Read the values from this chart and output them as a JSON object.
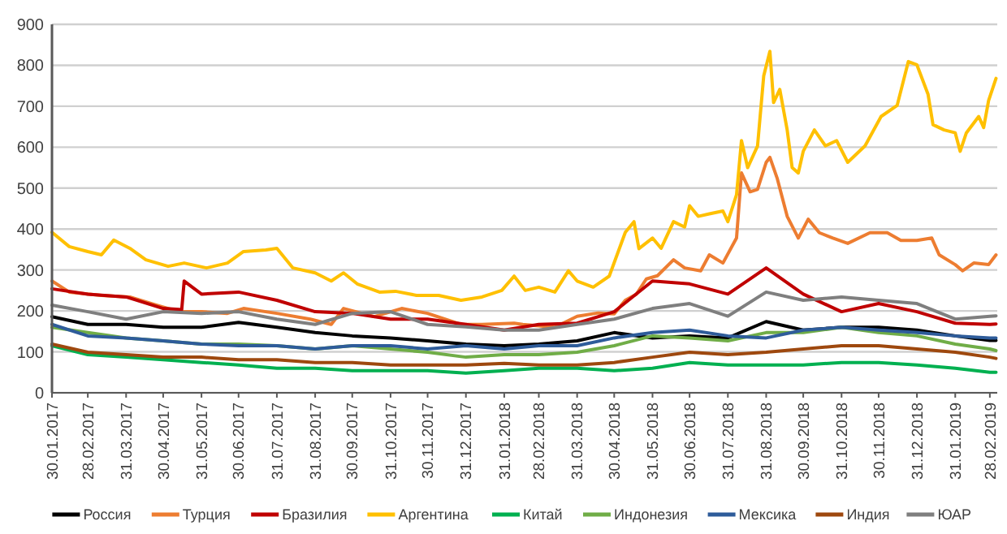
{
  "chart_data": {
    "type": "line",
    "legend": "bottom",
    "grid": "y",
    "line_style": "solid",
    "marker": "none",
    "xlim": [
      "2017-01-30",
      "2019-03-06"
    ],
    "xticks": [
      {
        "value": "2017-01-30",
        "label": "30.01.2017"
      },
      {
        "value": "2017-02-28",
        "label": "28.02.2017"
      },
      {
        "value": "2017-03-31",
        "label": "31.03.2017"
      },
      {
        "value": "2017-04-30",
        "label": "30.04.2017"
      },
      {
        "value": "2017-05-31",
        "label": "31.05.2017"
      },
      {
        "value": "2017-06-30",
        "label": "30.06.2017"
      },
      {
        "value": "2017-07-31",
        "label": "31.07.2017"
      },
      {
        "value": "2017-08-31",
        "label": "31.08.2017"
      },
      {
        "value": "2017-09-30",
        "label": "30.09.2017"
      },
      {
        "value": "2017-10-31",
        "label": "31.10.2017"
      },
      {
        "value": "2017-11-30",
        "label": "30.11.2017"
      },
      {
        "value": "2017-12-31",
        "label": "31.12.2017"
      },
      {
        "value": "2018-01-31",
        "label": "31.01.2018"
      },
      {
        "value": "2018-02-28",
        "label": "28.02.2018"
      },
      {
        "value": "2018-03-31",
        "label": "31.03.2018"
      },
      {
        "value": "2018-04-30",
        "label": "30.04.2018"
      },
      {
        "value": "2018-05-31",
        "label": "31.05.2018"
      },
      {
        "value": "2018-06-30",
        "label": "30.06.2018"
      },
      {
        "value": "2018-07-31",
        "label": "31.07.2018"
      },
      {
        "value": "2018-08-31",
        "label": "31.08.2018"
      },
      {
        "value": "2018-09-30",
        "label": "30.09.2018"
      },
      {
        "value": "2018-10-31",
        "label": "31.10.2018"
      },
      {
        "value": "2018-11-30",
        "label": "30.11.2018"
      },
      {
        "value": "2018-12-31",
        "label": "31.12.2018"
      },
      {
        "value": "2019-01-31",
        "label": "31.01.2019"
      },
      {
        "value": "2019-02-28",
        "label": "28.02.2019"
      }
    ],
    "ylim": [
      0,
      900
    ],
    "yticks": [
      0,
      100,
      200,
      300,
      400,
      500,
      600,
      700,
      800,
      900
    ],
    "x": [
      "2017-01-30",
      "2017-02-28",
      "2017-03-31",
      "2017-04-30",
      "2017-05-31",
      "2017-06-30",
      "2017-07-31",
      "2017-08-31",
      "2017-09-30",
      "2017-10-31",
      "2017-11-30",
      "2017-12-31",
      "2018-01-31",
      "2018-02-28",
      "2018-03-31",
      "2018-04-30",
      "2018-05-31",
      "2018-06-30",
      "2018-07-31",
      "2018-08-31",
      "2018-09-30",
      "2018-10-31",
      "2018-11-30",
      "2018-12-31",
      "2019-01-31",
      "2019-02-28",
      "2019-03-05"
    ],
    "series": [
      {
        "name": "Россия",
        "color": "#000000",
        "values": [
          186,
          167,
          167,
          160,
          160,
          172,
          160,
          147,
          139,
          134,
          127,
          119,
          115,
          119,
          127,
          147,
          134,
          139,
          134,
          174,
          153,
          160,
          160,
          153,
          139,
          128,
          128
        ]
      },
      {
        "name": "Турция",
        "color": "#ed7d31",
        "x": [
          "2017-01-30",
          "2017-02-13",
          "2017-03-11",
          "2017-04-03",
          "2017-04-25",
          "2017-05-13",
          "2017-05-31",
          "2017-06-21",
          "2017-07-04",
          "2017-07-31",
          "2017-08-27",
          "2017-09-13",
          "2017-09-23",
          "2017-10-18",
          "2017-11-09",
          "2017-11-30",
          "2017-12-27",
          "2018-01-13",
          "2018-02-08",
          "2018-02-15",
          "2018-03-13",
          "2018-03-31",
          "2018-04-17",
          "2018-04-30",
          "2018-05-09",
          "2018-05-18",
          "2018-05-26",
          "2018-06-04",
          "2018-06-17",
          "2018-06-26",
          "2018-07-09",
          "2018-07-16",
          "2018-07-27",
          "2018-08-07",
          "2018-08-11",
          "2018-08-18",
          "2018-08-24",
          "2018-08-31",
          "2018-09-03",
          "2018-09-09",
          "2018-09-17",
          "2018-09-26",
          "2018-10-04",
          "2018-10-13",
          "2018-10-24",
          "2018-11-05",
          "2018-11-23",
          "2018-12-07",
          "2018-12-18",
          "2018-12-31",
          "2019-01-12",
          "2019-01-18",
          "2019-01-31",
          "2019-02-06",
          "2019-02-15",
          "2019-02-27",
          "2019-03-05"
        ],
        "values": [
          273,
          246,
          238,
          234,
          214,
          198,
          198,
          194,
          206,
          194,
          180,
          167,
          206,
          186,
          206,
          194,
          167,
          167,
          170,
          167,
          160,
          187,
          195,
          193,
          226,
          241,
          278,
          286,
          325,
          305,
          298,
          337,
          317,
          378,
          537,
          491,
          497,
          563,
          575,
          523,
          431,
          378,
          424,
          391,
          378,
          365,
          391,
          391,
          372,
          372,
          378,
          337,
          313,
          298,
          317,
          313,
          337
        ]
      },
      {
        "name": "Бразилия",
        "color": "#c00000",
        "x": [
          "2017-01-30",
          "2017-02-28",
          "2017-03-31",
          "2017-04-30",
          "2017-05-15",
          "2017-05-17",
          "2017-05-31",
          "2017-06-30",
          "2017-07-31",
          "2017-08-31",
          "2017-09-30",
          "2017-10-31",
          "2017-11-30",
          "2017-12-31",
          "2018-01-31",
          "2018-02-28",
          "2018-03-31",
          "2018-04-30",
          "2018-05-31",
          "2018-06-30",
          "2018-07-31",
          "2018-08-31",
          "2018-09-30",
          "2018-10-31",
          "2018-11-30",
          "2018-12-31",
          "2019-01-31",
          "2019-02-28",
          "2019-03-05"
        ],
        "values": [
          254,
          241,
          234,
          206,
          203,
          273,
          241,
          246,
          226,
          198,
          194,
          180,
          180,
          167,
          153,
          167,
          170,
          198,
          273,
          266,
          241,
          305,
          241,
          198,
          218,
          198,
          170,
          167,
          168
        ]
      },
      {
        "name": "Аргентина",
        "color": "#ffc000",
        "x": [
          "2017-01-30",
          "2017-02-13",
          "2017-02-28",
          "2017-03-11",
          "2017-03-21",
          "2017-04-03",
          "2017-04-16",
          "2017-05-04",
          "2017-05-17",
          "2017-06-04",
          "2017-06-21",
          "2017-07-04",
          "2017-07-22",
          "2017-07-31",
          "2017-08-13",
          "2017-08-31",
          "2017-09-13",
          "2017-09-23",
          "2017-10-04",
          "2017-10-22",
          "2017-11-04",
          "2017-11-21",
          "2017-12-09",
          "2017-12-27",
          "2018-01-13",
          "2018-01-29",
          "2018-02-08",
          "2018-02-17",
          "2018-02-28",
          "2018-03-13",
          "2018-03-24",
          "2018-03-31",
          "2018-04-13",
          "2018-04-26",
          "2018-05-09",
          "2018-05-16",
          "2018-05-20",
          "2018-05-31",
          "2018-06-07",
          "2018-06-17",
          "2018-06-26",
          "2018-06-30",
          "2018-07-07",
          "2018-07-16",
          "2018-07-27",
          "2018-07-31",
          "2018-08-07",
          "2018-08-11",
          "2018-08-16",
          "2018-08-24",
          "2018-08-29",
          "2018-09-03",
          "2018-09-06",
          "2018-09-11",
          "2018-09-17",
          "2018-09-21",
          "2018-09-26",
          "2018-09-30",
          "2018-10-09",
          "2018-10-18",
          "2018-10-27",
          "2018-11-05",
          "2018-11-19",
          "2018-12-02",
          "2018-12-15",
          "2018-12-24",
          "2018-12-31",
          "2019-01-09",
          "2019-01-13",
          "2019-01-22",
          "2019-01-31",
          "2019-02-04",
          "2019-02-09",
          "2019-02-19",
          "2019-02-23",
          "2019-02-27",
          "2019-03-05"
        ],
        "values": [
          392,
          357,
          345,
          337,
          373,
          353,
          325,
          309,
          317,
          305,
          317,
          345,
          349,
          353,
          305,
          293,
          273,
          293,
          266,
          246,
          248,
          238,
          238,
          226,
          234,
          250,
          285,
          250,
          258,
          246,
          298,
          273,
          258,
          285,
          392,
          418,
          352,
          378,
          353,
          418,
          405,
          457,
          431,
          437,
          444,
          418,
          484,
          616,
          550,
          603,
          774,
          834,
          709,
          741,
          642,
          550,
          537,
          590,
          642,
          603,
          616,
          563,
          603,
          675,
          702,
          809,
          801,
          729,
          655,
          642,
          635,
          590,
          635,
          675,
          648,
          714,
          768
        ]
      },
      {
        "name": "Китай",
        "color": "#00b050",
        "values": [
          115,
          93,
          87,
          81,
          74,
          68,
          60,
          60,
          54,
          54,
          54,
          48,
          54,
          60,
          60,
          54,
          60,
          74,
          68,
          68,
          68,
          74,
          74,
          68,
          60,
          50,
          50
        ]
      },
      {
        "name": "Индонезия",
        "color": "#70ad47",
        "values": [
          160,
          147,
          134,
          127,
          119,
          119,
          115,
          107,
          115,
          107,
          99,
          87,
          93,
          93,
          99,
          115,
          139,
          134,
          127,
          147,
          147,
          160,
          147,
          139,
          119,
          107,
          103
        ]
      },
      {
        "name": "Мексика",
        "color": "#2e5c9a",
        "values": [
          167,
          139,
          134,
          127,
          119,
          115,
          115,
          107,
          115,
          115,
          107,
          115,
          107,
          115,
          115,
          134,
          147,
          153,
          139,
          134,
          153,
          160,
          153,
          147,
          139,
          134,
          134
        ]
      },
      {
        "name": "Индия",
        "color": "#9e480e",
        "values": [
          119,
          99,
          93,
          87,
          87,
          81,
          81,
          74,
          74,
          68,
          68,
          68,
          72,
          68,
          68,
          74,
          87,
          99,
          93,
          99,
          107,
          115,
          115,
          107,
          99,
          87,
          84
        ]
      },
      {
        "name": "ЮАР",
        "color": "#7f7f7f",
        "values": [
          214,
          198,
          180,
          198,
          194,
          198,
          180,
          167,
          194,
          198,
          167,
          161,
          153,
          153,
          167,
          180,
          206,
          218,
          187,
          246,
          226,
          234,
          226,
          218,
          180,
          187,
          188
        ]
      }
    ]
  }
}
